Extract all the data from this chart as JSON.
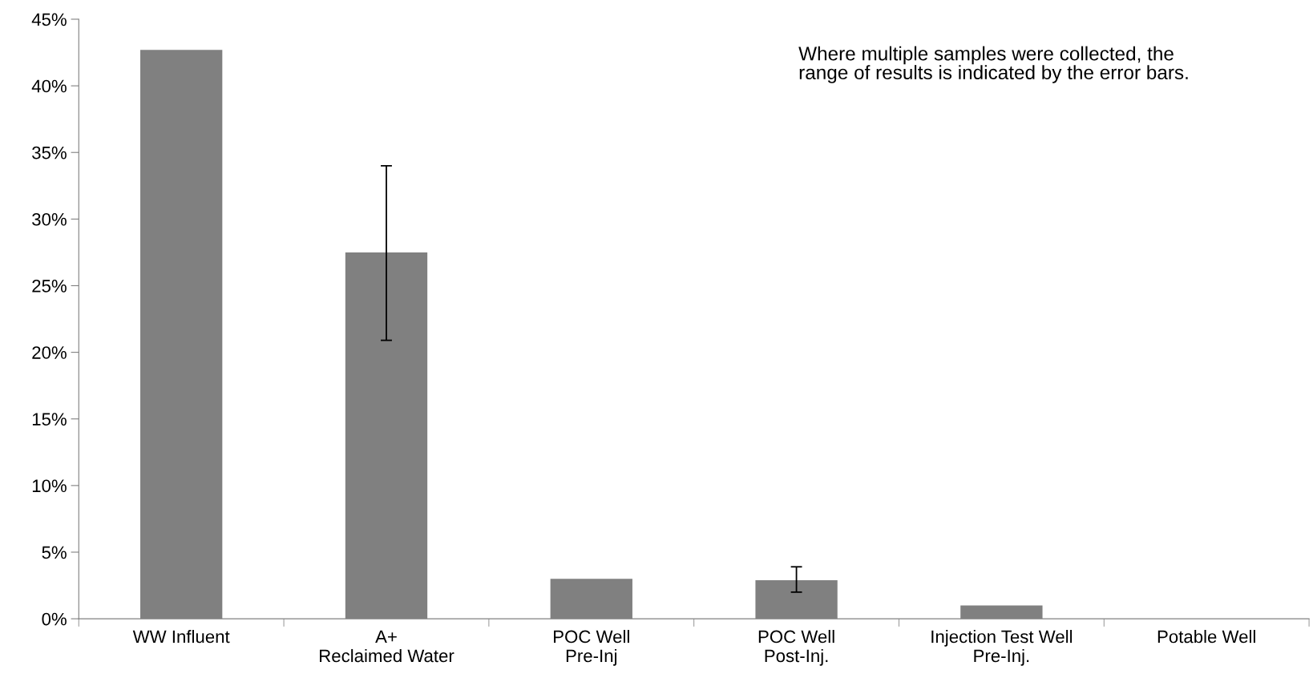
{
  "chart_data": {
    "type": "bar",
    "categories": [
      "WW Influent",
      "A+\nReclaimed Water",
      "POC Well\nPre-Inj",
      "POC Well\nPost-Inj.",
      "Injection Test Well\nPre-Inj.",
      "Potable Well"
    ],
    "values": [
      42.7,
      27.5,
      3.0,
      2.9,
      1.0,
      0
    ],
    "errors": [
      null,
      [
        20.9,
        34.0
      ],
      null,
      [
        2.0,
        3.9
      ],
      null,
      null
    ],
    "color": "#808080",
    "ylim": [
      0,
      45
    ],
    "yticks": [
      {
        "value": 0,
        "label": "0%"
      },
      {
        "value": 5,
        "label": "5%"
      },
      {
        "value": 10,
        "label": "10%"
      },
      {
        "value": 15,
        "label": "15%"
      },
      {
        "value": 20,
        "label": "20%"
      },
      {
        "value": 25,
        "label": "25%"
      },
      {
        "value": 30,
        "label": "30%"
      },
      {
        "value": 35,
        "label": "35%"
      },
      {
        "value": 40,
        "label": "40%"
      },
      {
        "value": 45,
        "label": "45%"
      }
    ],
    "annotations": [
      "Where multiple samples were collected, the\nrange of results is indicated by the error bars."
    ],
    "grid": false,
    "legend": false
  }
}
